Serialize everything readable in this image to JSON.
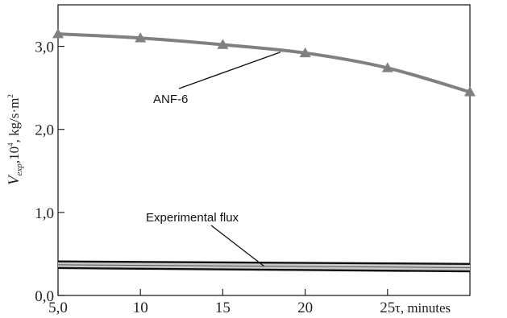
{
  "chart_data": {
    "type": "line",
    "xlabel": "τ, minutes",
    "ylabel_parts": {
      "v": "V",
      "sub": "exp",
      "mid": ",10",
      "exp": "4",
      "unit": ", kg/s·m",
      "unit_exp": "2"
    },
    "xlim": [
      5,
      30
    ],
    "ylim": [
      0,
      3.5
    ],
    "x_ticks": [
      {
        "value": 5,
        "label": "5,0"
      },
      {
        "value": 10,
        "label": "10"
      },
      {
        "value": 15,
        "label": "15"
      },
      {
        "value": 20,
        "label": "20"
      },
      {
        "value": 25,
        "label": "25"
      }
    ],
    "y_ticks": [
      {
        "value": 0,
        "label": "0,0"
      },
      {
        "value": 1,
        "label": "1,0"
      },
      {
        "value": 2,
        "label": "2,0"
      },
      {
        "value": 3,
        "label": "3,0"
      }
    ],
    "grid": false,
    "series": [
      {
        "name": "ANF-6",
        "color": "#808080",
        "marker": "triangle",
        "x": [
          5,
          10,
          15,
          20,
          25,
          30
        ],
        "y": [
          3.15,
          3.1,
          3.02,
          2.92,
          2.74,
          2.45
        ]
      }
    ],
    "band": {
      "name": "Experimental flux",
      "upper": {
        "x": [
          5,
          30
        ],
        "y": [
          0.41,
          0.38
        ]
      },
      "lower": {
        "x": [
          5,
          30
        ],
        "y": [
          0.33,
          0.29
        ]
      }
    },
    "annotations": [
      {
        "text": "ANF-6",
        "target": "series-0",
        "target_x": 18.5
      },
      {
        "text": "Experimental flux",
        "target": "band",
        "target_x": 17.5
      }
    ]
  }
}
